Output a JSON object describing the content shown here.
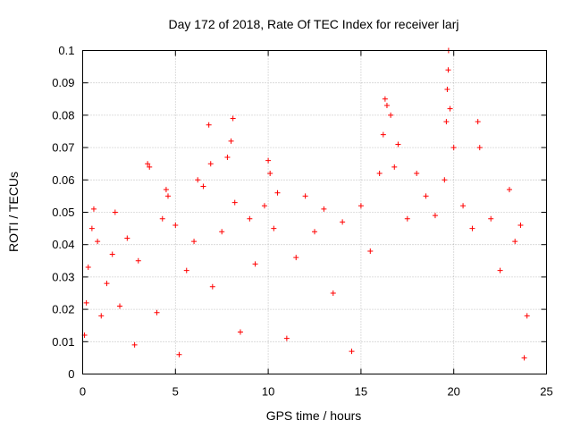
{
  "chart_data": {
    "type": "scatter",
    "title": "Day 172 of 2018, Rate Of TEC Index for receiver larj",
    "xlabel": "GPS time / hours",
    "ylabel": "ROTI / TECUs",
    "xlim": [
      0,
      25
    ],
    "ylim": [
      0,
      0.1
    ],
    "xticks": [
      0,
      5,
      10,
      15,
      20,
      25
    ],
    "xtick_labels": [
      "0",
      "5",
      "10",
      "15",
      "20",
      "25"
    ],
    "yticks": [
      0,
      0.01,
      0.02,
      0.03,
      0.04,
      0.05,
      0.06,
      0.07,
      0.08,
      0.09,
      0.1
    ],
    "ytick_labels": [
      "0",
      "0.01",
      "0.02",
      "0.03",
      "0.04",
      "0.05",
      "0.06",
      "0.07",
      "0.08",
      "0.09",
      "0.1"
    ],
    "grid": true,
    "marker": "+",
    "color": "#ff0000",
    "series": [
      {
        "name": "ROTI",
        "points": [
          [
            0.1,
            0.012
          ],
          [
            0.2,
            0.022
          ],
          [
            0.3,
            0.033
          ],
          [
            0.5,
            0.045
          ],
          [
            0.6,
            0.051
          ],
          [
            0.8,
            0.041
          ],
          [
            1.0,
            0.018
          ],
          [
            1.3,
            0.028
          ],
          [
            1.6,
            0.037
          ],
          [
            1.75,
            0.05
          ],
          [
            2.0,
            0.021
          ],
          [
            2.4,
            0.042
          ],
          [
            2.8,
            0.009
          ],
          [
            3.0,
            0.035
          ],
          [
            3.5,
            0.065
          ],
          [
            3.6,
            0.064
          ],
          [
            4.0,
            0.019
          ],
          [
            4.3,
            0.048
          ],
          [
            4.5,
            0.057
          ],
          [
            4.6,
            0.055
          ],
          [
            5.0,
            0.046
          ],
          [
            5.2,
            0.006
          ],
          [
            5.6,
            0.032
          ],
          [
            6.0,
            0.041
          ],
          [
            6.2,
            0.06
          ],
          [
            6.5,
            0.058
          ],
          [
            6.8,
            0.077
          ],
          [
            6.9,
            0.065
          ],
          [
            7.0,
            0.027
          ],
          [
            7.5,
            0.044
          ],
          [
            7.8,
            0.067
          ],
          [
            8.0,
            0.072
          ],
          [
            8.1,
            0.079
          ],
          [
            8.2,
            0.053
          ],
          [
            8.5,
            0.013
          ],
          [
            9.0,
            0.048
          ],
          [
            9.3,
            0.034
          ],
          [
            9.8,
            0.052
          ],
          [
            10.0,
            0.066
          ],
          [
            10.1,
            0.062
          ],
          [
            10.3,
            0.045
          ],
          [
            10.5,
            0.056
          ],
          [
            11.0,
            0.011
          ],
          [
            11.5,
            0.036
          ],
          [
            12.0,
            0.055
          ],
          [
            12.5,
            0.044
          ],
          [
            13.0,
            0.051
          ],
          [
            13.5,
            0.025
          ],
          [
            14.0,
            0.047
          ],
          [
            14.5,
            0.007
          ],
          [
            15.0,
            0.052
          ],
          [
            15.5,
            0.038
          ],
          [
            16.0,
            0.062
          ],
          [
            16.2,
            0.074
          ],
          [
            16.3,
            0.085
          ],
          [
            16.4,
            0.083
          ],
          [
            16.6,
            0.08
          ],
          [
            16.8,
            0.064
          ],
          [
            17.0,
            0.071
          ],
          [
            17.5,
            0.048
          ],
          [
            18.0,
            0.062
          ],
          [
            18.5,
            0.055
          ],
          [
            19.0,
            0.049
          ],
          [
            19.5,
            0.06
          ],
          [
            19.6,
            0.078
          ],
          [
            19.65,
            0.088
          ],
          [
            19.7,
            0.094
          ],
          [
            19.72,
            0.1
          ],
          [
            19.8,
            0.082
          ],
          [
            20.0,
            0.07
          ],
          [
            20.5,
            0.052
          ],
          [
            21.0,
            0.045
          ],
          [
            21.3,
            0.078
          ],
          [
            21.4,
            0.07
          ],
          [
            22.0,
            0.048
          ],
          [
            22.5,
            0.032
          ],
          [
            23.0,
            0.057
          ],
          [
            23.3,
            0.041
          ],
          [
            23.6,
            0.046
          ],
          [
            23.8,
            0.005
          ],
          [
            23.95,
            0.018
          ]
        ]
      }
    ]
  }
}
